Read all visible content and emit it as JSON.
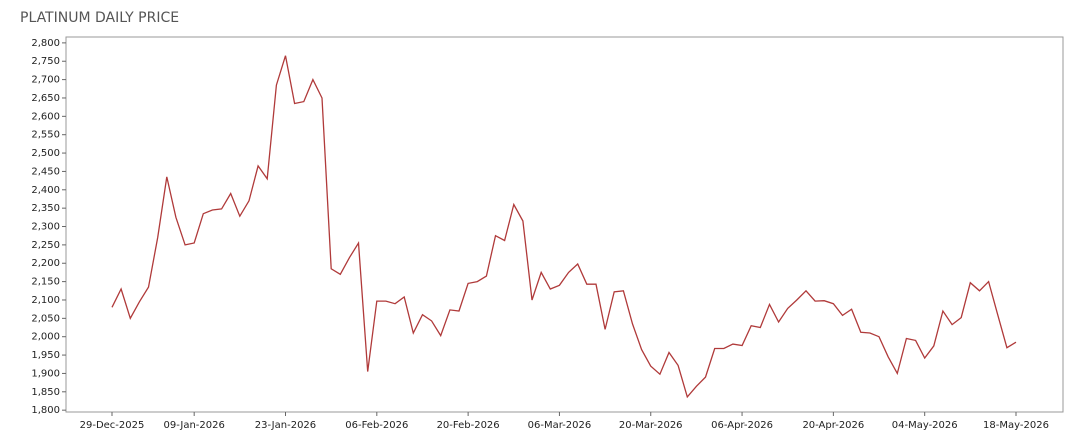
{
  "chart_data": {
    "type": "line",
    "title": "PLATINUM DAILY PRICE",
    "categories": [
      "29-Dec-2025",
      null,
      null,
      null,
      null,
      null,
      null,
      null,
      null,
      "09-Jan-2026",
      null,
      null,
      null,
      null,
      null,
      null,
      null,
      null,
      null,
      "23-Jan-2026",
      null,
      null,
      null,
      null,
      null,
      null,
      null,
      null,
      null,
      "06-Feb-2026",
      null,
      null,
      null,
      null,
      null,
      null,
      null,
      null,
      null,
      "20-Feb-2026",
      null,
      null,
      null,
      null,
      null,
      null,
      null,
      null,
      null,
      "06-Mar-2026",
      null,
      null,
      null,
      null,
      null,
      null,
      null,
      null,
      null,
      "20-Mar-2026",
      null,
      null,
      null,
      null,
      null,
      null,
      null,
      null,
      null,
      "06-Apr-2026",
      null,
      null,
      null,
      null,
      null,
      null,
      null,
      null,
      null,
      "20-Apr-2026",
      null,
      null,
      null,
      null,
      null,
      null,
      null,
      null,
      null,
      "04-May-2026",
      null,
      null,
      null,
      null,
      null,
      null,
      null,
      null,
      null,
      "18-May-2026"
    ],
    "values": [
      2080,
      2130,
      2050,
      2095,
      2135,
      2270,
      2435,
      2325,
      2250,
      2255,
      2335,
      2345,
      2348,
      2390,
      2328,
      2370,
      2465,
      2430,
      2685,
      2765,
      2635,
      2640,
      2700,
      2650,
      2185,
      2170,
      2215,
      2255,
      1905,
      2097,
      2097,
      2090,
      2108,
      2010,
      2060,
      2043,
      2003,
      2073,
      2070,
      2145,
      2150,
      2165,
      2275,
      2262,
      2360,
      2315,
      2100,
      2175,
      2130,
      2140,
      2175,
      2198,
      2143,
      2143,
      2020,
      2122,
      2125,
      2035,
      1965,
      1920,
      1898,
      1957,
      1922,
      1836,
      1865,
      1890,
      1968,
      1968,
      1980,
      1976,
      2030,
      2025,
      2088,
      2040,
      2077,
      2100,
      2125,
      2097,
      2098,
      2090,
      2058,
      2075,
      2012,
      2010,
      2000,
      1945,
      1900,
      1995,
      1990,
      1942,
      1975,
      2070,
      2033,
      2052,
      2147,
      2125,
      2150,
      2060,
      1970,
      1985
    ],
    "color": "#b03a3a",
    "ylim": [
      1795,
      2816
    ],
    "yticks": [
      {
        "value": 1800,
        "label": "1,800"
      },
      {
        "value": 1850,
        "label": "1,850"
      },
      {
        "value": 1900,
        "label": "1,900"
      },
      {
        "value": 1950,
        "label": "1,950"
      },
      {
        "value": 2000,
        "label": "2,000"
      },
      {
        "value": 2050,
        "label": "2,050"
      },
      {
        "value": 2100,
        "label": "2,100"
      },
      {
        "value": 2150,
        "label": "2,150"
      },
      {
        "value": 2200,
        "label": "2,200"
      },
      {
        "value": 2250,
        "label": "2,250"
      },
      {
        "value": 2300,
        "label": "2,300"
      },
      {
        "value": 2350,
        "label": "2,350"
      },
      {
        "value": 2400,
        "label": "2,400"
      },
      {
        "value": 2450,
        "label": "2,450"
      },
      {
        "value": 2500,
        "label": "2,500"
      },
      {
        "value": 2550,
        "label": "2,550"
      },
      {
        "value": 2600,
        "label": "2,600"
      },
      {
        "value": 2650,
        "label": "2,650"
      },
      {
        "value": 2700,
        "label": "2,700"
      },
      {
        "value": 2750,
        "label": "2,750"
      },
      {
        "value": 2800,
        "label": "2,800"
      }
    ],
    "grid": false
  }
}
